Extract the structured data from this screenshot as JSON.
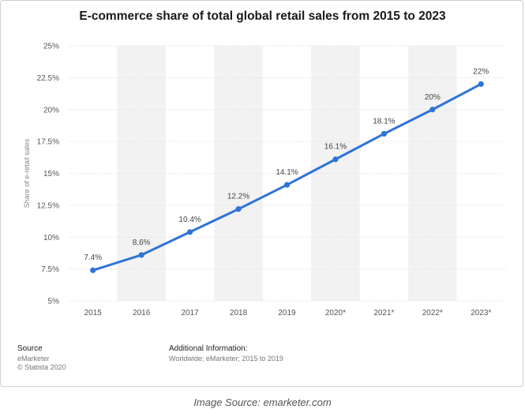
{
  "source": {
    "heading": "Source",
    "lines": [
      "eMarketer",
      "© Statista 2020"
    ]
  },
  "additional_info": {
    "heading": "Additional Information:",
    "text": "Worldwide; eMarketer; 2015 to 2019"
  },
  "caption": "Image Source: emarketer.com",
  "colors": {
    "line": "#2f74d6",
    "band": "#f2f2f2",
    "grid": "#dcdcdc"
  },
  "chart_data": {
    "type": "line",
    "title": "E-commerce share of total global retail sales from 2015 to 2023",
    "xlabel": "",
    "ylabel": "Share of e-retail sales",
    "categories": [
      "2015",
      "2016",
      "2017",
      "2018",
      "2019",
      "2020*",
      "2021*",
      "2022*",
      "2023*"
    ],
    "series": [
      {
        "values": [
          7.4,
          8.6,
          10.4,
          12.2,
          14.1,
          16.1,
          18.1,
          20,
          22
        ],
        "labels": [
          "7.4%",
          "8.6%",
          "10.4%",
          "12.2%",
          "14.1%",
          "16.1%",
          "18.1%",
          "20%",
          "22%"
        ]
      }
    ],
    "ylim": [
      5,
      25
    ],
    "yticks": [
      5,
      7.5,
      10,
      12.5,
      15,
      17.5,
      20,
      22.5,
      25
    ],
    "ytick_labels": [
      "5%",
      "7.5%",
      "10%",
      "12.5%",
      "15%",
      "17.5%",
      "20%",
      "22.5%",
      "25%"
    ],
    "grid": true,
    "alternating_bands": true
  }
}
